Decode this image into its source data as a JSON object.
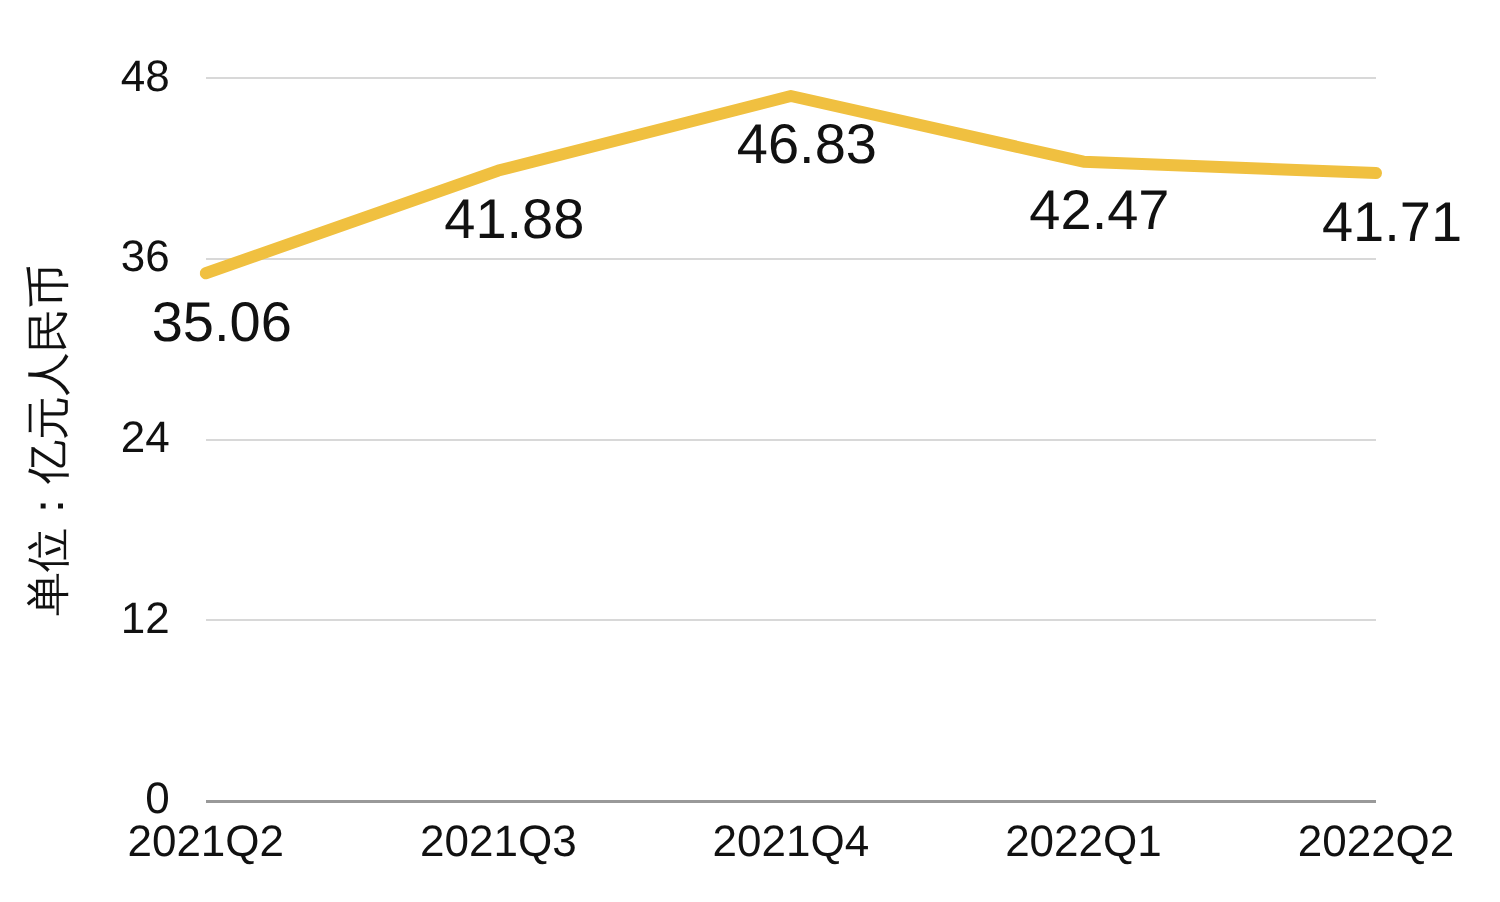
{
  "chart_data": {
    "type": "line",
    "ylabel": "单位：亿元人民币",
    "categories": [
      "2021Q2",
      "2021Q3",
      "2021Q4",
      "2022Q1",
      "2022Q2"
    ],
    "series": [
      {
        "color": "#f0c040",
        "values": [
          35.06,
          41.88,
          46.83,
          42.47,
          41.71
        ]
      }
    ],
    "ylim": [
      0,
      48
    ],
    "yticks": [
      0,
      12,
      24,
      36,
      48
    ],
    "grid": "y",
    "data_labels": true,
    "marker": "none",
    "legend": false
  }
}
